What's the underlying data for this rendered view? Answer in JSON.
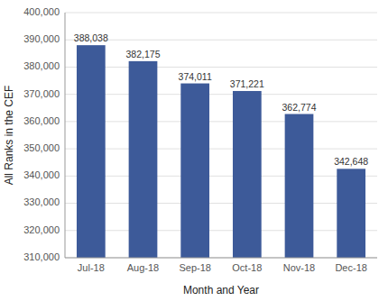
{
  "chart_data": {
    "type": "bar",
    "categories": [
      "Jul-18",
      "Aug-18",
      "Sep-18",
      "Oct-18",
      "Nov-18",
      "Dec-18"
    ],
    "values": [
      388038,
      382175,
      374011,
      371221,
      362774,
      342648
    ],
    "value_labels": [
      "388,038",
      "382,175",
      "374,011",
      "371,221",
      "362,774",
      "342,648"
    ],
    "data_labels": true,
    "color": "#3D5A99",
    "xlabel": "Month and Year",
    "ylabel": "All Ranks in the CEF",
    "ylim": [
      310000,
      400000
    ],
    "yticks": [
      {
        "value": 310000,
        "label": "310,000"
      },
      {
        "value": 320000,
        "label": "320,000"
      },
      {
        "value": 330000,
        "label": "330,000"
      },
      {
        "value": 340000,
        "label": "340,000"
      },
      {
        "value": 350000,
        "label": "350,000"
      },
      {
        "value": 360000,
        "label": "360,000"
      },
      {
        "value": 370000,
        "label": "370,000"
      },
      {
        "value": 380000,
        "label": "380,000"
      },
      {
        "value": 390000,
        "label": "390,000"
      },
      {
        "value": 400000,
        "label": "400,000"
      }
    ],
    "grid": true
  }
}
